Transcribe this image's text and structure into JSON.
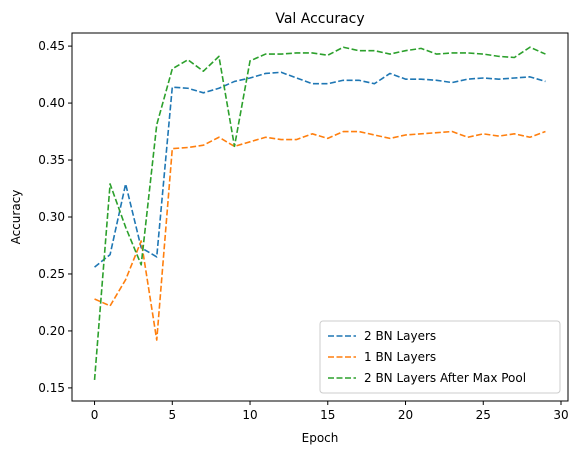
{
  "chart_data": {
    "type": "line",
    "title": "Val Accuracy",
    "xlabel": "Epoch",
    "ylabel": "Accuracy",
    "xlim": [
      -1.45,
      30.45
    ],
    "ylim": [
      0.1385,
      0.4615
    ],
    "x_ticks": [
      0,
      5,
      10,
      15,
      20,
      25,
      30
    ],
    "y_ticks": [
      0.15,
      0.2,
      0.25,
      0.3,
      0.35,
      0.4,
      0.45
    ],
    "x_tick_labels": [
      "0",
      "5",
      "10",
      "15",
      "20",
      "25",
      "30"
    ],
    "y_tick_labels": [
      "0.15",
      "0.20",
      "0.25",
      "0.30",
      "0.35",
      "0.40",
      "0.45"
    ],
    "grid": false,
    "legend_position": "lower-right",
    "x": [
      0,
      1,
      2,
      3,
      4,
      5,
      6,
      7,
      8,
      9,
      10,
      11,
      12,
      13,
      14,
      15,
      16,
      17,
      18,
      19,
      20,
      21,
      22,
      23,
      24,
      25,
      26,
      27,
      28,
      29
    ],
    "series": [
      {
        "name": "2 BN Layers",
        "color": "#1f77b4",
        "style": "dashed",
        "values": [
          0.256,
          0.267,
          0.329,
          0.273,
          0.265,
          0.414,
          0.413,
          0.409,
          0.413,
          0.419,
          0.422,
          0.426,
          0.427,
          0.422,
          0.417,
          0.417,
          0.42,
          0.42,
          0.417,
          0.426,
          0.421,
          0.421,
          0.42,
          0.418,
          0.421,
          0.422,
          0.421,
          0.422,
          0.423,
          0.419
        ]
      },
      {
        "name": "1 BN Layers",
        "color": "#ff7f0e",
        "style": "dashed",
        "values": [
          0.228,
          0.222,
          0.245,
          0.279,
          0.192,
          0.36,
          0.361,
          0.363,
          0.37,
          0.362,
          0.366,
          0.37,
          0.368,
          0.368,
          0.373,
          0.369,
          0.375,
          0.375,
          0.372,
          0.369,
          0.372,
          0.373,
          0.374,
          0.375,
          0.37,
          0.373,
          0.371,
          0.373,
          0.37,
          0.375
        ]
      },
      {
        "name": "2 BN Layers After Max Pool",
        "color": "#2ca02c",
        "style": "dashed",
        "values": [
          0.157,
          0.329,
          0.291,
          0.258,
          0.381,
          0.43,
          0.438,
          0.428,
          0.441,
          0.362,
          0.437,
          0.443,
          0.443,
          0.444,
          0.444,
          0.442,
          0.449,
          0.446,
          0.446,
          0.443,
          0.446,
          0.448,
          0.443,
          0.444,
          0.444,
          0.443,
          0.441,
          0.44,
          0.449,
          0.443
        ]
      }
    ]
  }
}
